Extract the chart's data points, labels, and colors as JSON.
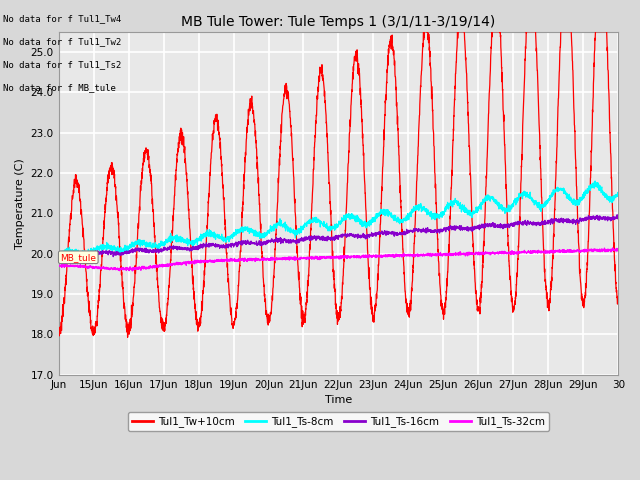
{
  "title": "MB Tule Tower: Tule Temps 1 (3/1/11-3/19/14)",
  "xlabel": "Time",
  "ylabel": "Temperature (C)",
  "ylim": [
    17.0,
    25.5
  ],
  "yticks": [
    17.0,
    18.0,
    19.0,
    20.0,
    21.0,
    22.0,
    23.0,
    24.0,
    25.0
  ],
  "xlim_days": [
    14,
    30
  ],
  "xtick_labels": [
    "Jun",
    "15Jun",
    "16Jun",
    "17Jun",
    "18Jun",
    "19Jun",
    "20Jun",
    "21Jun",
    "22Jun",
    "23Jun",
    "24Jun",
    "25Jun",
    "26Jun",
    "27Jun",
    "28Jun",
    "29Jun",
    "30"
  ],
  "xtick_positions": [
    14,
    15,
    16,
    17,
    18,
    19,
    20,
    21,
    22,
    23,
    24,
    25,
    26,
    27,
    28,
    29,
    30
  ],
  "no_data_texts": [
    "No data for f Tul1_Tw4",
    "No data for f Tul1_Tw2",
    "No data for f Tul1_Ts2",
    "No data for f MB_tule"
  ],
  "legend_entries": [
    {
      "label": "Tul1_Tw+10cm",
      "color": "#ff0000"
    },
    {
      "label": "Tul1_Ts-8cm",
      "color": "#00ffff"
    },
    {
      "label": "Tul1_Ts-16cm",
      "color": "#8800cc"
    },
    {
      "label": "Tul1_Ts-32cm",
      "color": "#ff00ff"
    }
  ],
  "bg_color": "#d8d8d8",
  "plot_bg_color": "#e8e8e8",
  "grid_color": "#ffffff",
  "title_fontsize": 10,
  "axis_fontsize": 8,
  "tick_fontsize": 7.5
}
